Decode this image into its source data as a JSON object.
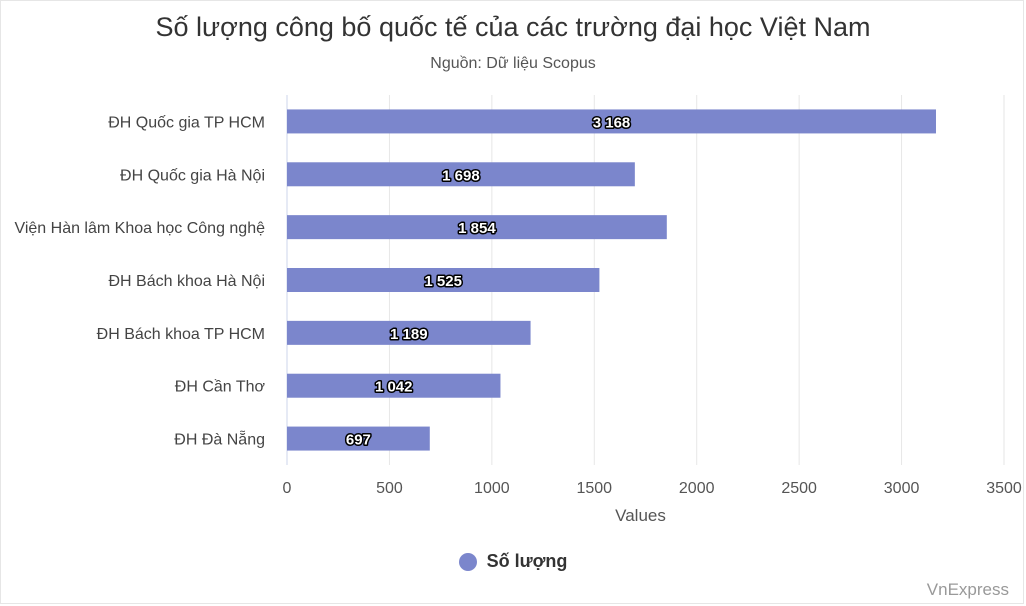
{
  "chart_data": {
    "type": "bar",
    "orientation": "horizontal",
    "title": "Số lượng công bố quốc tế của các trường đại học Việt Nam",
    "subtitle": "Nguồn: Dữ liệu Scopus",
    "xlabel": "Values",
    "categories": [
      "ĐH Quốc gia TP HCM",
      "ĐH Quốc gia Hà Nội",
      "Viện Hàn lâm Khoa học Công nghệ",
      "ĐH Bách khoa Hà Nội",
      "ĐH Bách khoa TP HCM",
      "ĐH Cần Thơ",
      "ĐH Đà Nẵng"
    ],
    "series": [
      {
        "name": "Số lượng",
        "values": [
          3168,
          1698,
          1854,
          1525,
          1189,
          1042,
          697
        ],
        "labels": [
          "3 168",
          "1 698",
          "1 854",
          "1 525",
          "1 189",
          "1 042",
          "697"
        ],
        "color": "#7b86cc"
      }
    ],
    "xlim": [
      0,
      3500
    ],
    "xticks": [
      0,
      500,
      1000,
      1500,
      2000,
      2500,
      3000,
      3500
    ],
    "grid": true,
    "legend_position": "bottom-center"
  },
  "credit": "VnExpress"
}
